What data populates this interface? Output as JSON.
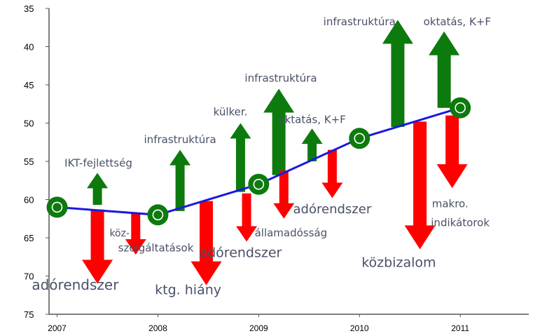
{
  "chart_data": {
    "type": "line",
    "title": "",
    "xlabel": "",
    "ylabel": "",
    "y_axis_reversed": true,
    "ylim": [
      35,
      75
    ],
    "yticks": [
      35,
      40,
      45,
      50,
      55,
      60,
      65,
      70,
      75
    ],
    "categories": [
      "2007",
      "2008",
      "2009",
      "2010",
      "2011"
    ],
    "series": [
      {
        "values": [
          61,
          62,
          58,
          52,
          48
        ]
      }
    ],
    "line_color": "#1a1adc",
    "marker_color": "#0d7a0d",
    "up_color": "#0d7a0d",
    "down_color": "#ff0000",
    "arrows": [
      {
        "x": 2007.4,
        "from": 61.3,
        "to": 71,
        "dir": "down",
        "label": "adórendszer",
        "label_x": 2007.18,
        "label_y": 71.8,
        "size": 20
      },
      {
        "x": 2007.4,
        "from": 60.7,
        "to": 56.5,
        "dir": "up",
        "label": "IKT-fejlettség",
        "label_x": 2007.41,
        "label_y": 55.7,
        "size": 15
      },
      {
        "x": 2007.78,
        "from": 61.8,
        "to": 67.2,
        "dir": "down",
        "label": "köz-",
        "label_x": 2007.62,
        "label_y": 64.8,
        "size": 14
      },
      {
        "x": 2007.78,
        "from": 0,
        "to": 0,
        "dir": "none",
        "label": "szolgáltatások",
        "label_x": 2007.98,
        "label_y": 66.8,
        "size": 15
      },
      {
        "x": 2008.22,
        "from": 61.5,
        "to": 53.5,
        "dir": "up",
        "label": "infrastruktúra",
        "label_x": 2008.22,
        "label_y": 52.6,
        "size": 15
      },
      {
        "x": 2008.48,
        "from": 60.2,
        "to": 71.2,
        "dir": "down",
        "label": "ktg. hiány",
        "label_x": 2008.3,
        "label_y": 72.4,
        "size": 19
      },
      {
        "x": 2008.82,
        "from": 59,
        "to": 50,
        "dir": "up",
        "label": "külker.",
        "label_x": 2008.72,
        "label_y": 49,
        "size": 15
      },
      {
        "x": 2008.88,
        "from": 59.2,
        "to": 65.5,
        "dir": "down",
        "label": "adórendszer",
        "label_x": 2008.82,
        "label_y": 67.5,
        "size": 19
      },
      {
        "x": 2009.2,
        "from": 56.8,
        "to": 45.5,
        "dir": "up",
        "label": "infrastruktúra",
        "label_x": 2009.22,
        "label_y": 44.6,
        "size": 15
      },
      {
        "x": 2009.25,
        "from": 56.2,
        "to": 62.5,
        "dir": "down",
        "label": "államadósság",
        "label_x": 2009.32,
        "label_y": 64.8,
        "size": 15
      },
      {
        "x": 2009.53,
        "from": 55,
        "to": 50.7,
        "dir": "up",
        "label": "oktatás, K+F",
        "label_x": 2009.53,
        "label_y": 50,
        "size": 15
      },
      {
        "x": 2009.73,
        "from": 53.5,
        "to": 59.8,
        "dir": "down",
        "label": "adórendszer",
        "label_x": 2009.73,
        "label_y": 61.8,
        "size": 18
      },
      {
        "x": 2010.38,
        "from": 50.5,
        "to": 36.5,
        "dir": "up",
        "label": "infrastruktúra",
        "label_x": 2010.0,
        "label_y": 37.2,
        "size": 15
      },
      {
        "x": 2010.6,
        "from": 49.8,
        "to": 66.5,
        "dir": "down",
        "label": "közbizalom",
        "label_x": 2010.39,
        "label_y": 68.8,
        "size": 19
      },
      {
        "x": 2010.84,
        "from": 48,
        "to": 38,
        "dir": "up",
        "label": "oktatás, K+F",
        "label_x": 2010.97,
        "label_y": 37.2,
        "size": 15
      },
      {
        "x": 2010.92,
        "from": 49,
        "to": 58.5,
        "dir": "down",
        "label": "makro.",
        "label_x": 2010.9,
        "label_y": 61,
        "size": 15
      },
      {
        "x": 2010.92,
        "from": 0,
        "to": 0,
        "dir": "none",
        "label": "indikátorok",
        "label_x": 2011.0,
        "label_y": 63.5,
        "size": 15
      }
    ]
  }
}
